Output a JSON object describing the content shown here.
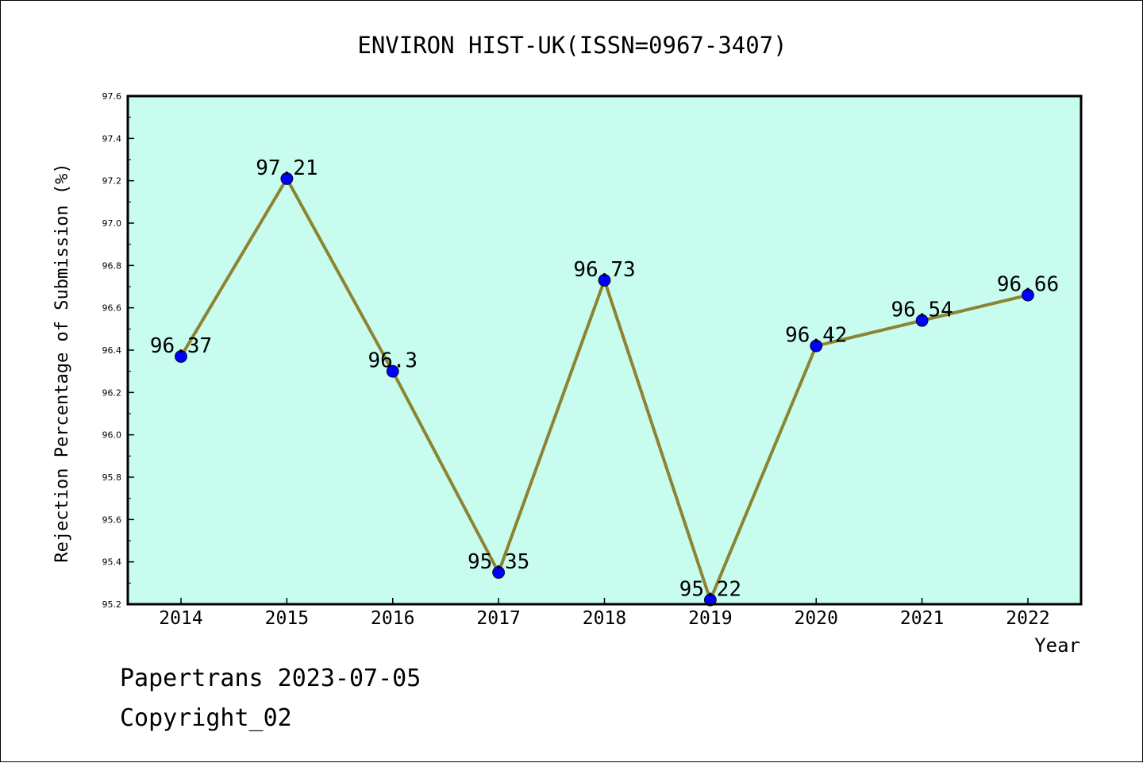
{
  "chart_data": {
    "type": "line",
    "title": "ENVIRON HIST-UK(ISSN=0967-3407)",
    "xlabel": "Year",
    "ylabel": "Rejection Percentage of Submission (%)",
    "categories": [
      "2014",
      "2015",
      "2016",
      "2017",
      "2018",
      "2019",
      "2020",
      "2021",
      "2022"
    ],
    "series": [
      {
        "values": [
          96.37,
          97.21,
          96.3,
          95.35,
          96.73,
          95.22,
          96.42,
          96.54,
          96.66
        ],
        "data_labels": [
          "96.37",
          "97.21",
          "96.3",
          "95.35",
          "96.73",
          "95.22",
          "96.42",
          "96.54",
          "96.66"
        ]
      }
    ],
    "ylim": [
      95.2,
      97.6
    ],
    "yticks": [
      "95.2",
      "95.4",
      "95.6",
      "95.8",
      "96.0",
      "96.2",
      "96.4",
      "96.6",
      "96.8",
      "97.0",
      "97.2",
      "97.4",
      "97.6"
    ],
    "grid": false,
    "colors": {
      "plot_background": "#c8fcee",
      "line": "#8c8433",
      "marker": "#0000ff"
    }
  },
  "footer": {
    "line1": "Papertrans 2023-07-05",
    "line2": "Copyright_02"
  }
}
